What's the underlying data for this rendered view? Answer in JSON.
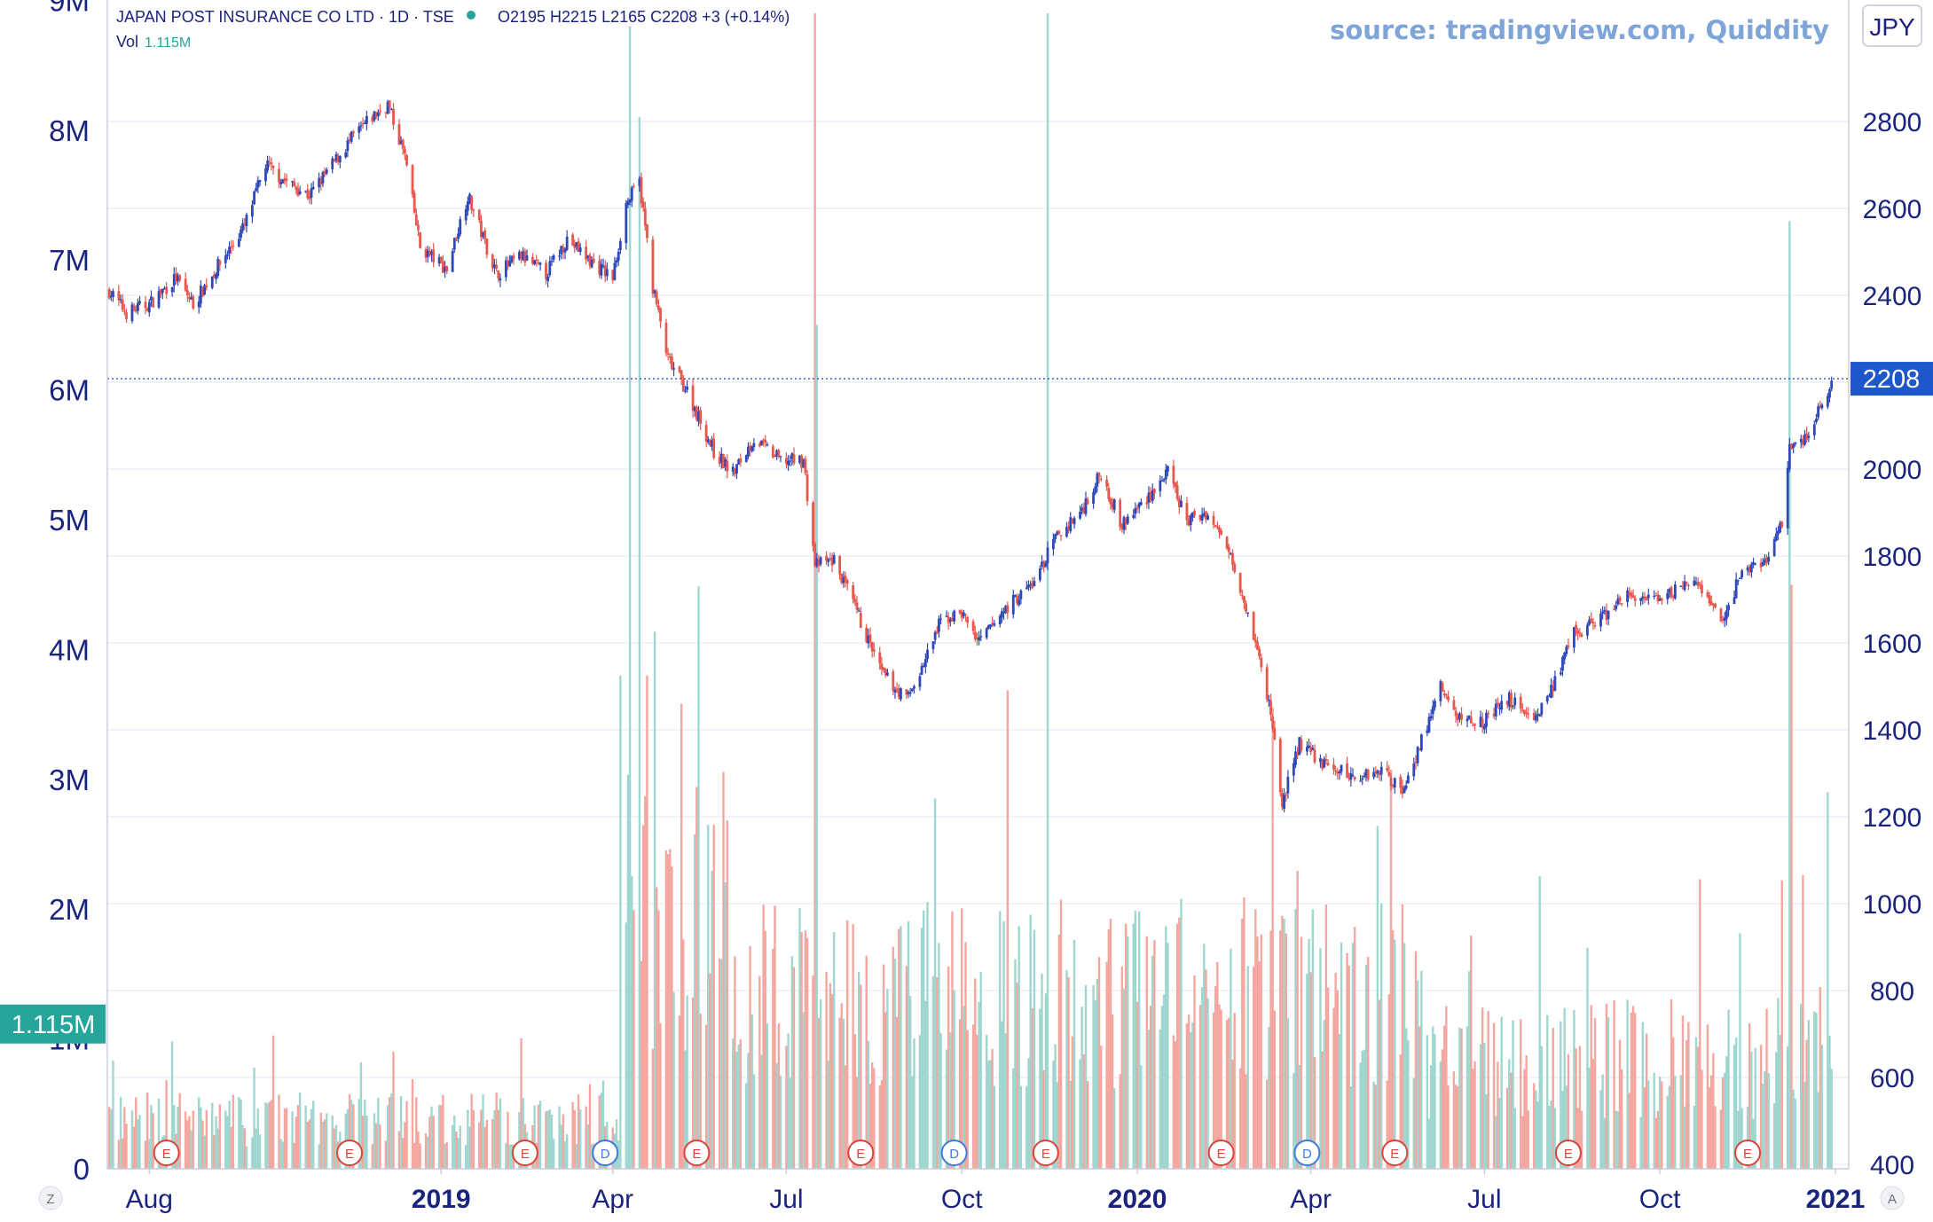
{
  "header": {
    "symbol": "JAPAN POST INSURANCE CO LTD · 1D · TSE",
    "ohlc": "O2195  H2215  L2165  C2208  +3 (+0.14%)",
    "volume_label": "Vol",
    "volume_value": "1.115M",
    "source": "source: tradingview.com, Quiddity"
  },
  "currency": "JPY",
  "last_price_label": "2208",
  "last_volume_label": "1.115M",
  "corner_left": "Z",
  "corner_right": "A",
  "colors": {
    "up": "#2f48b8",
    "down": "#e8574d",
    "vol_up": "#9fd6cf",
    "vol_down": "#f4a7a0",
    "accent": "#1e57c9",
    "vol_badge": "#26a69a"
  },
  "chart_data": {
    "type": "candlestick",
    "title": "JAPAN POST INSURANCE CO LTD · 1D · TSE",
    "y_price_ticks": [
      "2800",
      "2600",
      "2400",
      "2200",
      "2000",
      "1800",
      "1600",
      "1400",
      "1200",
      "1000",
      "800",
      "600",
      "400"
    ],
    "y_volume_ticks": [
      "9M",
      "8M",
      "7M",
      "6M",
      "5M",
      "4M",
      "3M",
      "2M",
      "1M",
      "0"
    ],
    "x_ticks": [
      "Aug",
      "2019",
      "Apr",
      "Jul",
      "Oct",
      "2020",
      "Apr",
      "Jul",
      "Oct",
      "2021"
    ],
    "x_ticks_bold": [
      false,
      true,
      false,
      false,
      false,
      true,
      false,
      false,
      false,
      true
    ],
    "x_tick_dates": [
      "2018-08-01",
      "2019-01-01",
      "2019-04-01",
      "2019-07-01",
      "2019-10-01",
      "2020-01-01",
      "2020-04-01",
      "2020-07-01",
      "2020-10-01",
      "2021-01-01"
    ],
    "price_range": [
      400,
      2900
    ],
    "volume_range": [
      0,
      9000000
    ],
    "price_path": [
      [
        "2018-07-11",
        2410
      ],
      [
        "2018-07-20",
        2360
      ],
      [
        "2018-08-01",
        2380
      ],
      [
        "2018-08-15",
        2440
      ],
      [
        "2018-08-24",
        2380
      ],
      [
        "2018-09-05",
        2460
      ],
      [
        "2018-09-20",
        2560
      ],
      [
        "2018-10-01",
        2700
      ],
      [
        "2018-10-12",
        2660
      ],
      [
        "2018-10-24",
        2630
      ],
      [
        "2018-11-05",
        2700
      ],
      [
        "2018-11-15",
        2760
      ],
      [
        "2018-11-26",
        2810
      ],
      [
        "2018-12-04",
        2840
      ],
      [
        "2018-12-13",
        2720
      ],
      [
        "2018-12-21",
        2510
      ],
      [
        "2019-01-04",
        2460
      ],
      [
        "2019-01-15",
        2630
      ],
      [
        "2019-01-30",
        2450
      ],
      [
        "2019-02-12",
        2490
      ],
      [
        "2019-02-25",
        2450
      ],
      [
        "2019-03-08",
        2530
      ],
      [
        "2019-03-20",
        2480
      ],
      [
        "2019-04-01",
        2440
      ],
      [
        "2019-04-08",
        2610
      ],
      [
        "2019-04-15",
        2660
      ],
      [
        "2019-04-22",
        2420
      ],
      [
        "2019-04-30",
        2250
      ],
      [
        "2019-05-10",
        2180
      ],
      [
        "2019-05-24",
        2040
      ],
      [
        "2019-06-03",
        1990
      ],
      [
        "2019-06-14",
        2070
      ],
      [
        "2019-06-28",
        2020
      ],
      [
        "2019-07-10",
        2020
      ],
      [
        "2019-07-16",
        1780
      ],
      [
        "2019-07-26",
        1790
      ],
      [
        "2019-08-06",
        1680
      ],
      [
        "2019-08-20",
        1530
      ],
      [
        "2019-09-02",
        1470
      ],
      [
        "2019-09-10",
        1540
      ],
      [
        "2019-09-20",
        1650
      ],
      [
        "2019-10-01",
        1670
      ],
      [
        "2019-10-10",
        1600
      ],
      [
        "2019-10-24",
        1680
      ],
      [
        "2019-11-08",
        1740
      ],
      [
        "2019-11-19",
        1840
      ],
      [
        "2019-12-02",
        1900
      ],
      [
        "2019-12-13",
        1990
      ],
      [
        "2019-12-24",
        1870
      ],
      [
        "2020-01-09",
        1950
      ],
      [
        "2020-01-17",
        1990
      ],
      [
        "2020-01-27",
        1880
      ],
      [
        "2020-02-06",
        1900
      ],
      [
        "2020-02-19",
        1810
      ],
      [
        "2020-03-02",
        1620
      ],
      [
        "2020-03-11",
        1440
      ],
      [
        "2020-03-17",
        1230
      ],
      [
        "2020-03-26",
        1370
      ],
      [
        "2020-04-08",
        1320
      ],
      [
        "2020-04-24",
        1290
      ],
      [
        "2020-05-08",
        1310
      ],
      [
        "2020-05-19",
        1260
      ],
      [
        "2020-06-01",
        1410
      ],
      [
        "2020-06-08",
        1500
      ],
      [
        "2020-06-16",
        1430
      ],
      [
        "2020-06-30",
        1420
      ],
      [
        "2020-07-14",
        1470
      ],
      [
        "2020-07-28",
        1430
      ],
      [
        "2020-08-07",
        1510
      ],
      [
        "2020-08-17",
        1620
      ],
      [
        "2020-09-01",
        1660
      ],
      [
        "2020-09-15",
        1710
      ],
      [
        "2020-10-01",
        1690
      ],
      [
        "2020-10-13",
        1740
      ],
      [
        "2020-10-23",
        1720
      ],
      [
        "2020-11-04",
        1650
      ],
      [
        "2020-11-12",
        1760
      ],
      [
        "2020-11-25",
        1790
      ],
      [
        "2020-12-04",
        1870
      ],
      [
        "2020-12-08",
        2060
      ],
      [
        "2020-12-15",
        2060
      ],
      [
        "2020-12-24",
        2140
      ],
      [
        "2020-12-30",
        2208
      ]
    ],
    "volume_spikes": [
      [
        "2019-04-05",
        3800000
      ],
      [
        "2019-04-10",
        8800000
      ],
      [
        "2019-04-15",
        8100000
      ],
      [
        "2019-04-19",
        3800000
      ],
      [
        "2019-07-16",
        8900000
      ],
      [
        "2019-07-17",
        6500000
      ],
      [
        "2019-11-15",
        8900000
      ],
      [
        "2020-12-08",
        7300000
      ],
      [
        "2020-12-09",
        4500000
      ],
      [
        "2020-12-28",
        2900000
      ]
    ],
    "events": [
      {
        "label": "E",
        "date": "2018-08-10"
      },
      {
        "label": "E",
        "date": "2018-11-14"
      },
      {
        "label": "E",
        "date": "2019-02-14"
      },
      {
        "label": "D",
        "date": "2019-03-28"
      },
      {
        "label": "E",
        "date": "2019-05-15"
      },
      {
        "label": "E",
        "date": "2019-08-09"
      },
      {
        "label": "D",
        "date": "2019-09-27"
      },
      {
        "label": "E",
        "date": "2019-11-14"
      },
      {
        "label": "E",
        "date": "2020-02-14"
      },
      {
        "label": "D",
        "date": "2020-03-30"
      },
      {
        "label": "E",
        "date": "2020-05-15"
      },
      {
        "label": "E",
        "date": "2020-08-14"
      },
      {
        "label": "E",
        "date": "2020-11-16"
      }
    ],
    "last_price": 2208,
    "last_volume": 1115000
  }
}
